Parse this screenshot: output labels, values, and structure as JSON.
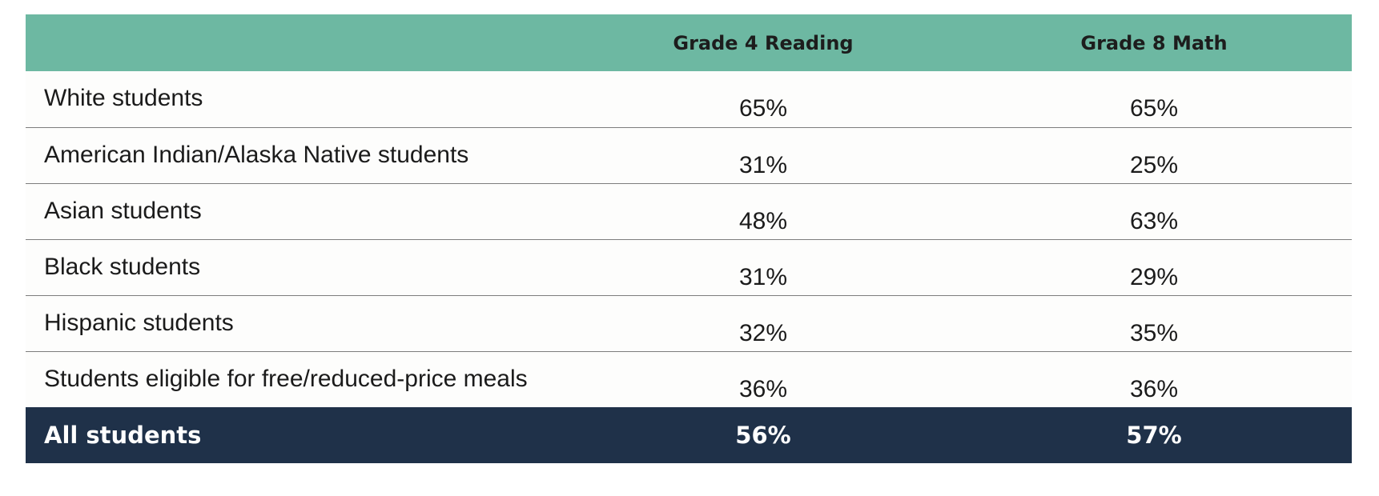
{
  "chart_data": {
    "type": "table",
    "columns": [
      "",
      "Grade 4 Reading",
      "Grade 8 Math"
    ],
    "rows": [
      {
        "label": "White students",
        "grade4_reading": "65%",
        "grade8_math": "65%"
      },
      {
        "label": "American Indian/Alaska Native students",
        "grade4_reading": "31%",
        "grade8_math": "25%"
      },
      {
        "label": "Asian students",
        "grade4_reading": "48%",
        "grade8_math": "63%"
      },
      {
        "label": "Black students",
        "grade4_reading": "31%",
        "grade8_math": "29%"
      },
      {
        "label": "Hispanic students",
        "grade4_reading": "32%",
        "grade8_math": "35%"
      },
      {
        "label": "Students eligible for free/reduced-price meals",
        "grade4_reading": "36%",
        "grade8_math": "36%"
      }
    ],
    "total": {
      "label": "All students",
      "grade4_reading": "56%",
      "grade8_math": "57%"
    }
  },
  "colors": {
    "header_bg": "#6db8a2",
    "total_bg": "#1f3149",
    "row_divider": "#7d7d7d"
  }
}
